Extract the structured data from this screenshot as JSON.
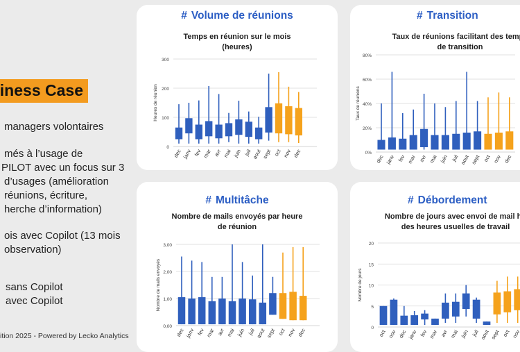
{
  "left": {
    "title": "siness Case",
    "lines": [
      "managers volontaires",
      "més à l’usage de",
      "PILOT avec un focus sur 3",
      "d’usages (amélioration",
      "réunions, écriture,",
      "herche d’information)",
      "ois avec Copilot (13 mois",
      "observation)",
      "sans Copilot",
      "avec Copilot"
    ],
    "footer": "ition 2025 - Powered by Lecko Analytics"
  },
  "colors": {
    "without_copilot": "#2f5fbd",
    "with_copilot": "#f5a21c",
    "heading": "#2c5ec4"
  },
  "cards": [
    {
      "hash": "#",
      "heading": "Volume de réunions",
      "chart_data": {
        "type": "box",
        "title_lines": [
          "Temps en réunion sur le mois",
          "(heures)"
        ],
        "ylabel": "Heures de réunion",
        "ylim": [
          0,
          300
        ],
        "yticks": [
          "0",
          "100",
          "200",
          "300"
        ],
        "ytick_values": [
          0,
          100,
          200,
          300
        ],
        "categories": [
          "dec",
          "janv",
          "fev",
          "mar",
          "avr",
          "mai",
          "juin",
          "juil",
          "aout",
          "sept",
          "oct",
          "nov",
          "dec"
        ],
        "copilot": [
          false,
          false,
          false,
          false,
          false,
          false,
          false,
          false,
          false,
          false,
          true,
          true,
          true
        ],
        "boxes": [
          {
            "lo": 10,
            "q1": 25,
            "q3": 65,
            "hi": 145
          },
          {
            "lo": 10,
            "q1": 45,
            "q3": 97,
            "hi": 150
          },
          {
            "lo": 10,
            "q1": 25,
            "q3": 75,
            "hi": 158
          },
          {
            "lo": 10,
            "q1": 35,
            "q3": 87,
            "hi": 207
          },
          {
            "lo": 10,
            "q1": 28,
            "q3": 75,
            "hi": 180
          },
          {
            "lo": 15,
            "q1": 35,
            "q3": 80,
            "hi": 115
          },
          {
            "lo": 10,
            "q1": 40,
            "q3": 93,
            "hi": 157
          },
          {
            "lo": 10,
            "q1": 33,
            "q3": 85,
            "hi": 120
          },
          {
            "lo": 10,
            "q1": 25,
            "q3": 65,
            "hi": 102
          },
          {
            "lo": 20,
            "q1": 48,
            "q3": 135,
            "hi": 250
          },
          {
            "lo": 15,
            "q1": 45,
            "q3": 148,
            "hi": 255
          },
          {
            "lo": 15,
            "q1": 42,
            "q3": 138,
            "hi": 205
          },
          {
            "lo": 12,
            "q1": 38,
            "q3": 132,
            "hi": 187
          }
        ]
      }
    },
    {
      "hash": "#",
      "heading": "Transition",
      "chart_data": {
        "type": "box",
        "title_lines": [
          "Taux de réunions facilitant des temps",
          "de transition"
        ],
        "ylabel": "Taux de réunions",
        "ylim": [
          0,
          80
        ],
        "yticks": [
          "0%",
          "20%",
          "40%",
          "60%",
          "80%"
        ],
        "ytick_values": [
          0,
          20,
          40,
          60,
          80
        ],
        "categories": [
          "dec",
          "janv",
          "fev",
          "mar",
          "avr",
          "mai",
          "juin",
          "juil",
          "aout",
          "sept",
          "oct",
          "nov",
          "dec"
        ],
        "copilot": [
          false,
          false,
          false,
          false,
          false,
          false,
          false,
          false,
          false,
          false,
          true,
          true,
          true
        ],
        "boxes": [
          {
            "lo": 2,
            "q1": 2,
            "q3": 10,
            "hi": 40
          },
          {
            "lo": 2,
            "q1": 2,
            "q3": 12,
            "hi": 66
          },
          {
            "lo": 2,
            "q1": 2,
            "q3": 11,
            "hi": 32
          },
          {
            "lo": 2,
            "q1": 2,
            "q3": 14,
            "hi": 35
          },
          {
            "lo": 2,
            "q1": 4,
            "q3": 19,
            "hi": 48
          },
          {
            "lo": 2,
            "q1": 2,
            "q3": 14,
            "hi": 40
          },
          {
            "lo": 2,
            "q1": 2,
            "q3": 14,
            "hi": 37
          },
          {
            "lo": 2,
            "q1": 2,
            "q3": 15,
            "hi": 42
          },
          {
            "lo": 2,
            "q1": 2,
            "q3": 16,
            "hi": 66
          },
          {
            "lo": 2,
            "q1": 2,
            "q3": 17,
            "hi": 42
          },
          {
            "lo": 2,
            "q1": 2,
            "q3": 15,
            "hi": 45
          },
          {
            "lo": 2,
            "q1": 2,
            "q3": 16,
            "hi": 49
          },
          {
            "lo": 2,
            "q1": 2,
            "q3": 17,
            "hi": 45
          }
        ]
      }
    },
    {
      "hash": "#",
      "heading": "Multitâche",
      "chart_data": {
        "type": "box",
        "title_lines": [
          "Nombre de mails envoyés par heure",
          "de réunion"
        ],
        "ylabel": "Nombre de mails envoyés",
        "ylim": [
          0,
          3
        ],
        "yticks": [
          "0,00",
          "1,00",
          "2,00",
          "3,00"
        ],
        "ytick_values": [
          0,
          1,
          2,
          3
        ],
        "categories": [
          "dec",
          "janv",
          "fev",
          "mar",
          "avr",
          "mai",
          "juin",
          "juil",
          "aout",
          "sept",
          "oct",
          "nov",
          "dec"
        ],
        "copilot": [
          false,
          false,
          false,
          false,
          false,
          false,
          false,
          false,
          false,
          false,
          true,
          true,
          true
        ],
        "boxes": [
          {
            "lo": 0.05,
            "q1": 0.05,
            "q3": 1.05,
            "hi": 2.55
          },
          {
            "lo": 0.05,
            "q1": 0.05,
            "q3": 1.0,
            "hi": 2.4
          },
          {
            "lo": 0.05,
            "q1": 0.05,
            "q3": 1.05,
            "hi": 2.35
          },
          {
            "lo": 0.05,
            "q1": 0.05,
            "q3": 0.9,
            "hi": 1.8
          },
          {
            "lo": 0.05,
            "q1": 0.05,
            "q3": 1.0,
            "hi": 1.8
          },
          {
            "lo": 0.05,
            "q1": 0.05,
            "q3": 0.9,
            "hi": 3.0
          },
          {
            "lo": 0.05,
            "q1": 0.05,
            "q3": 1.0,
            "hi": 2.35
          },
          {
            "lo": 0.05,
            "q1": 0.05,
            "q3": 0.97,
            "hi": 1.85
          },
          {
            "lo": 0.05,
            "q1": 0.05,
            "q3": 0.85,
            "hi": 3.0
          },
          {
            "lo": 0.4,
            "q1": 0.4,
            "q3": 1.2,
            "hi": 1.8
          },
          {
            "lo": 0.25,
            "q1": 0.25,
            "q3": 1.2,
            "hi": 2.7
          },
          {
            "lo": 0.2,
            "q1": 0.2,
            "q3": 1.25,
            "hi": 2.9
          },
          {
            "lo": 0.2,
            "q1": 0.2,
            "q3": 1.1,
            "hi": 2.9
          }
        ]
      }
    },
    {
      "hash": "#",
      "heading": "Débordement",
      "chart_data": {
        "type": "box",
        "title_lines": [
          "Nombre de jours avec envoi de mail ho",
          "des heures usuelles de travail"
        ],
        "ylabel": "Nombre de jours",
        "ylim": [
          0,
          20
        ],
        "yticks": [
          "0",
          "5",
          "10",
          "15",
          "20"
        ],
        "ytick_values": [
          0,
          5,
          10,
          15,
          20
        ],
        "categories": [
          "oct",
          "nov",
          "dec",
          "janv",
          "fev",
          "mar",
          "avr",
          "mai",
          "juin",
          "juil",
          "aout",
          "sept",
          "oct",
          "nov"
        ],
        "copilot": [
          false,
          false,
          false,
          false,
          false,
          false,
          false,
          false,
          false,
          false,
          false,
          true,
          true,
          true
        ],
        "boxes": [
          {
            "lo": 0.5,
            "q1": 0.5,
            "q3": 5,
            "hi": 5
          },
          {
            "lo": 0.5,
            "q1": 0.5,
            "q3": 6.5,
            "hi": 6.8
          },
          {
            "lo": 0.5,
            "q1": 0.5,
            "q3": 2.7,
            "hi": 5
          },
          {
            "lo": 0.5,
            "q1": 0.5,
            "q3": 2.8,
            "hi": 3.8
          },
          {
            "lo": 0.5,
            "q1": 1.8,
            "q3": 3.2,
            "hi": 4
          },
          {
            "lo": 0.5,
            "q1": 0.5,
            "q3": 2,
            "hi": 2
          },
          {
            "lo": 1,
            "q1": 2,
            "q3": 5.8,
            "hi": 8
          },
          {
            "lo": 1,
            "q1": 2.5,
            "q3": 6,
            "hi": 8
          },
          {
            "lo": 2.5,
            "q1": 4.3,
            "q3": 8,
            "hi": 10
          },
          {
            "lo": 1,
            "q1": 2,
            "q3": 6.5,
            "hi": 7
          },
          {
            "lo": 0.5,
            "q1": 0.5,
            "q3": 1.3,
            "hi": 1.3
          },
          {
            "lo": 1,
            "q1": 3,
            "q3": 8.2,
            "hi": 11
          },
          {
            "lo": 1,
            "q1": 3.5,
            "q3": 8.5,
            "hi": 12
          },
          {
            "lo": 1,
            "q1": 4,
            "q3": 9,
            "hi": 12
          }
        ]
      }
    }
  ]
}
